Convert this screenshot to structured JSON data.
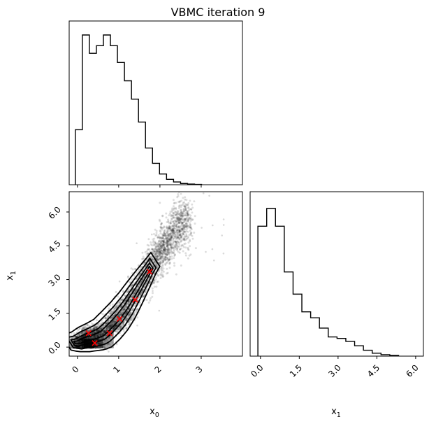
{
  "title": "VBMC iteration 9",
  "colors": {
    "hist": "#000000",
    "contour": "#000000",
    "points": "#000000",
    "markers": "#ff0000"
  },
  "chart_data": [
    {
      "panel": "top-left",
      "type": "bar",
      "style": "step histogram",
      "variable": "x0",
      "bin_edges": [
        -0.05,
        0.12,
        0.29,
        0.46,
        0.63,
        0.8,
        0.97,
        1.14,
        1.31,
        1.48,
        1.65,
        1.82,
        1.99,
        2.16,
        2.33,
        2.5,
        2.67,
        2.84,
        3.01
      ],
      "values": [
        0.36,
        0.98,
        0.86,
        0.91,
        0.98,
        0.91,
        0.8,
        0.68,
        0.56,
        0.41,
        0.24,
        0.14,
        0.07,
        0.035,
        0.018,
        0.008,
        0.004,
        0.002
      ],
      "xlim": [
        -0.2,
        4.0
      ],
      "xticks": [
        0,
        1,
        2,
        3
      ],
      "show_tick_labels": false
    },
    {
      "panel": "bottom-left",
      "type": "scatter",
      "style": "density scatter with contours and 2D histogram",
      "xlabel": "x0",
      "ylabel": "x1",
      "xlim": [
        -0.2,
        4.0
      ],
      "ylim": [
        -0.4,
        6.9
      ],
      "xticks": [
        "0",
        "1",
        "2",
        "3"
      ],
      "yticks": [
        "0.0",
        "1.5",
        "3.0",
        "4.5",
        "6.0"
      ],
      "ridge_x": [
        0.0,
        0.2,
        0.4,
        0.6,
        0.8,
        1.0,
        1.2,
        1.4,
        1.6,
        1.8,
        2.0,
        2.2,
        2.4,
        2.6
      ],
      "ridge_y": [
        0.2,
        0.35,
        0.45,
        0.6,
        0.95,
        1.35,
        1.85,
        2.45,
        3.05,
        3.65,
        4.2,
        4.7,
        5.2,
        5.6
      ],
      "red_markers": [
        {
          "x": 0.27,
          "y": 0.62
        },
        {
          "x": 0.42,
          "y": 0.18
        },
        {
          "x": 0.78,
          "y": 0.62
        },
        {
          "x": 1.02,
          "y": 1.25
        },
        {
          "x": 1.4,
          "y": 2.1
        },
        {
          "x": 1.75,
          "y": 3.35
        }
      ]
    },
    {
      "panel": "bottom-right",
      "type": "bar",
      "style": "step histogram",
      "variable": "x1",
      "xlabel": "x1",
      "bin_edges": [
        -0.1,
        0.24,
        0.58,
        0.92,
        1.26,
        1.6,
        1.94,
        2.28,
        2.62,
        2.96,
        3.3,
        3.64,
        3.98,
        4.32,
        4.66,
        5.0,
        5.34
      ],
      "values": [
        0.88,
        1.0,
        0.88,
        0.57,
        0.42,
        0.3,
        0.26,
        0.19,
        0.13,
        0.12,
        0.1,
        0.07,
        0.04,
        0.02,
        0.01,
        0.005
      ],
      "xlim": [
        -0.4,
        6.3
      ],
      "xticks": [
        "0.0",
        "1.5",
        "3.0",
        "4.5",
        "6.0"
      ]
    }
  ]
}
